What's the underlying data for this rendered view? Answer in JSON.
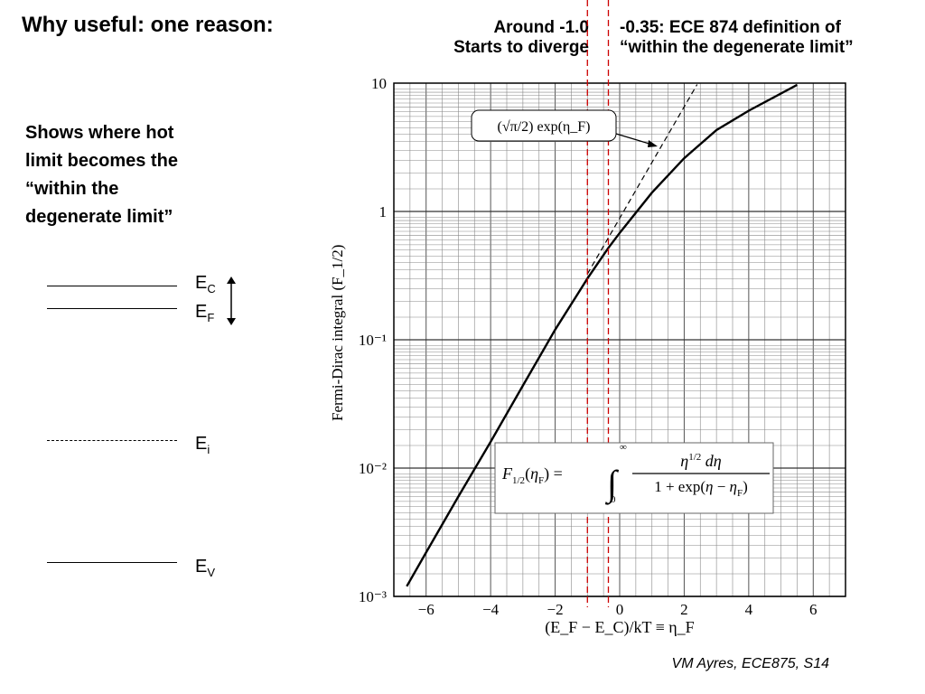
{
  "slide": {
    "title": "Why useful: one reason:",
    "note_left": [
      "Around -1.0",
      "Starts to diverge"
    ],
    "note_right": [
      "-0.35: ECE 874 definition of",
      "“within the degenerate limit”"
    ],
    "side_text": [
      "Shows where hot",
      "limit becomes the",
      "“within the",
      "degenerate limit”"
    ],
    "levels": [
      {
        "label": "E",
        "sub": "C"
      },
      {
        "label": "E",
        "sub": "F"
      },
      {
        "label": "E",
        "sub": "i"
      },
      {
        "label": "E",
        "sub": "V"
      }
    ],
    "footer": "VM Ayres, ECE875, S14"
  },
  "chart_data": {
    "type": "line",
    "xlabel": "(E_F − E_C)/kT ≡ η_F",
    "ylabel": "Fermi-Dirac integral (F_1/2)",
    "xlim": [
      -7,
      7
    ],
    "ylim": [
      0.001,
      10
    ],
    "yscale": "log",
    "x_ticks": [
      "−6",
      "−4",
      "−2",
      "0",
      "2",
      "4",
      "6"
    ],
    "x_tick_values": [
      -6,
      -4,
      -2,
      0,
      2,
      4,
      6
    ],
    "y_ticks": [
      "10⁻³",
      "10⁻²",
      "10⁻¹",
      "1",
      "10"
    ],
    "y_tick_values": [
      0.001,
      0.01,
      0.1,
      1,
      10
    ],
    "grid": true,
    "series": [
      {
        "name": "F_1/2(η_F)",
        "style": "solid",
        "x": [
          -6.6,
          -6,
          -5,
          -4,
          -3,
          -2,
          -1,
          -0.35,
          0,
          1,
          2,
          3,
          4,
          5.5
        ],
        "y": [
          0.0012,
          0.0022,
          0.006,
          0.016,
          0.044,
          0.12,
          0.3,
          0.52,
          0.68,
          1.4,
          2.6,
          4.3,
          6.1,
          9.7
        ]
      },
      {
        "name": "(√π/2) exp(η_F)",
        "style": "dashed",
        "x": [
          -1,
          0,
          1,
          2.4
        ],
        "y": [
          0.326,
          0.886,
          2.41,
          9.76
        ]
      }
    ],
    "annotations": [
      {
        "text": "(√π/2) exp(η_F)",
        "points_to": "dashed asymptote"
      },
      {
        "text": "F_1/2(η_F) = ∫₀^∞ η^1/2 dη / (1 + exp(η − η_F))"
      }
    ],
    "markers": [
      {
        "x": -1.0,
        "color": "#cc0000",
        "style": "dashed"
      },
      {
        "x": -0.35,
        "color": "#cc0000",
        "style": "dashed"
      }
    ]
  }
}
